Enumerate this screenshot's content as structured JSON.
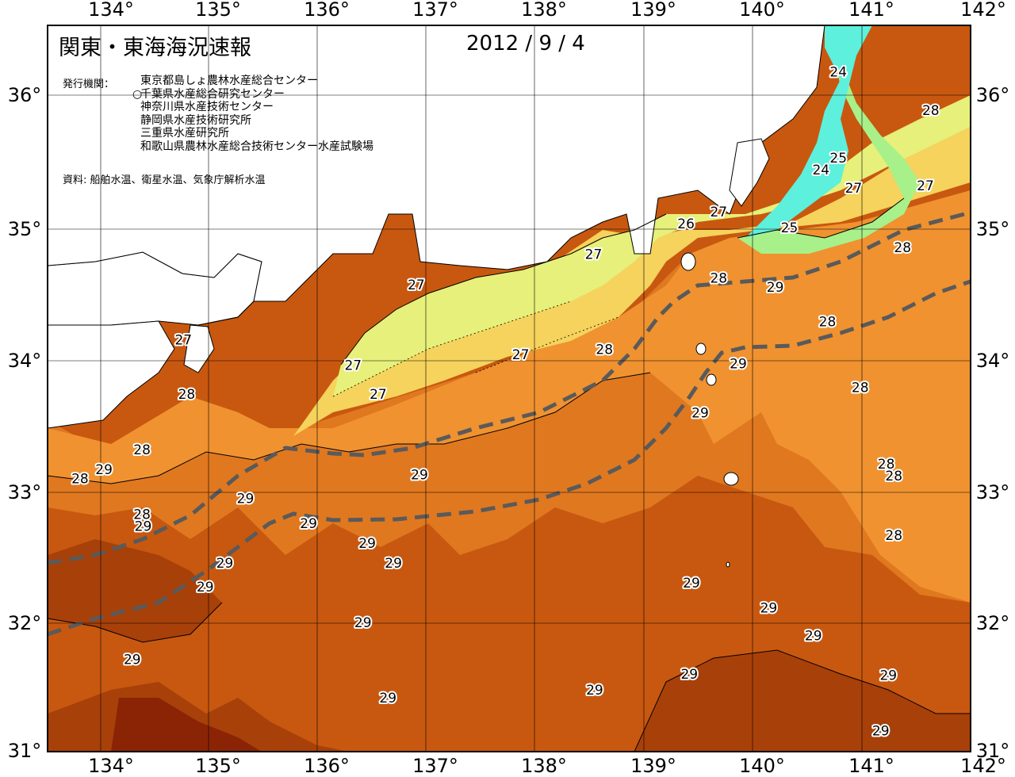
{
  "header": {
    "title": "関東・東海海況速報",
    "date": "2012 / 9 / 4"
  },
  "publishers": {
    "label": "発行機関：",
    "items": [
      {
        "name": "東京都島しょ農林水産総合センター",
        "marker": ""
      },
      {
        "name": "千葉県水産総合研究センター",
        "marker": "○"
      },
      {
        "name": "神奈川県水産技術センター",
        "marker": ""
      },
      {
        "name": "静岡県水産技術研究所",
        "marker": ""
      },
      {
        "name": "三重県水産研究所",
        "marker": ""
      },
      {
        "name": "和歌山県農林水産総合技術センター水産試験場",
        "marker": ""
      }
    ]
  },
  "source": "資料: 船舶水温、衛星水温、気象庁解析水温",
  "axes": {
    "lon_labels": [
      "134°",
      "135°",
      "136°",
      "137°",
      "138°",
      "139°",
      "140°",
      "141°",
      "142°"
    ],
    "lat_labels": [
      "36°",
      "35°",
      "34°",
      "33°",
      "32°",
      "31°"
    ]
  },
  "colors": {
    "t24": "#5df0dc",
    "t25": "#a8f08a",
    "t26": "#e6f07a",
    "t27": "#f5d35c",
    "t27b": "#f0b040",
    "t28": "#f09230",
    "t28b": "#e07820",
    "t29": "#c8580f",
    "t29b": "#a84009",
    "t30": "#8a2405",
    "land": "#ffffff",
    "front": "#5a5a5a"
  },
  "contour_labels": [
    {
      "text": "24",
      "lon": 140.78,
      "lat": 36.17
    },
    {
      "text": "28",
      "lon": 141.63,
      "lat": 35.88
    },
    {
      "text": "25",
      "lon": 140.78,
      "lat": 35.52
    },
    {
      "text": "24",
      "lon": 140.62,
      "lat": 35.43
    },
    {
      "text": "27",
      "lon": 140.92,
      "lat": 35.29
    },
    {
      "text": "27",
      "lon": 141.58,
      "lat": 35.31
    },
    {
      "text": "27",
      "lon": 139.68,
      "lat": 35.11
    },
    {
      "text": "26",
      "lon": 139.38,
      "lat": 35.02
    },
    {
      "text": "25",
      "lon": 140.33,
      "lat": 34.99
    },
    {
      "text": "28",
      "lon": 141.37,
      "lat": 34.84
    },
    {
      "text": "27",
      "lon": 138.53,
      "lat": 34.79
    },
    {
      "text": "28",
      "lon": 139.68,
      "lat": 34.61
    },
    {
      "text": "27",
      "lon": 136.9,
      "lat": 34.56
    },
    {
      "text": "29",
      "lon": 140.2,
      "lat": 34.54
    },
    {
      "text": "28",
      "lon": 140.68,
      "lat": 34.28
    },
    {
      "text": "27",
      "lon": 134.76,
      "lat": 34.14
    },
    {
      "text": "28",
      "lon": 138.63,
      "lat": 34.07
    },
    {
      "text": "27",
      "lon": 137.86,
      "lat": 34.03
    },
    {
      "text": "29",
      "lon": 139.86,
      "lat": 33.96
    },
    {
      "text": "27",
      "lon": 136.32,
      "lat": 33.95
    },
    {
      "text": "28",
      "lon": 140.98,
      "lat": 33.78
    },
    {
      "text": "28",
      "lon": 134.79,
      "lat": 33.73
    },
    {
      "text": "27",
      "lon": 136.55,
      "lat": 33.73
    },
    {
      "text": "29",
      "lon": 139.51,
      "lat": 33.59
    },
    {
      "text": "28",
      "lon": 134.38,
      "lat": 33.31
    },
    {
      "text": "28",
      "lon": 141.22,
      "lat": 33.2
    },
    {
      "text": "29",
      "lon": 134.03,
      "lat": 33.16
    },
    {
      "text": "28",
      "lon": 141.29,
      "lat": 33.11
    },
    {
      "text": "29",
      "lon": 136.93,
      "lat": 33.12
    },
    {
      "text": "28",
      "lon": 133.81,
      "lat": 33.09
    },
    {
      "text": "29",
      "lon": 135.33,
      "lat": 32.94
    },
    {
      "text": "28",
      "lon": 134.38,
      "lat": 32.82
    },
    {
      "text": "29",
      "lon": 134.39,
      "lat": 32.73
    },
    {
      "text": "29",
      "lon": 135.91,
      "lat": 32.75
    },
    {
      "text": "28",
      "lon": 141.29,
      "lat": 32.66
    },
    {
      "text": "29",
      "lon": 136.45,
      "lat": 32.6
    },
    {
      "text": "29",
      "lon": 135.14,
      "lat": 32.45
    },
    {
      "text": "29",
      "lon": 136.69,
      "lat": 32.45
    },
    {
      "text": "29",
      "lon": 139.43,
      "lat": 32.3
    },
    {
      "text": "29",
      "lon": 134.96,
      "lat": 32.27
    },
    {
      "text": "29",
      "lon": 140.14,
      "lat": 32.11
    },
    {
      "text": "29",
      "lon": 136.41,
      "lat": 32.0
    },
    {
      "text": "29",
      "lon": 140.55,
      "lat": 31.9
    },
    {
      "text": "29",
      "lon": 134.29,
      "lat": 31.72
    },
    {
      "text": "29",
      "lon": 139.41,
      "lat": 31.61
    },
    {
      "text": "29",
      "lon": 141.24,
      "lat": 31.6
    },
    {
      "text": "29",
      "lon": 138.54,
      "lat": 31.49
    },
    {
      "text": "29",
      "lon": 136.64,
      "lat": 31.43
    },
    {
      "text": "29",
      "lon": 141.17,
      "lat": 31.18
    }
  ]
}
